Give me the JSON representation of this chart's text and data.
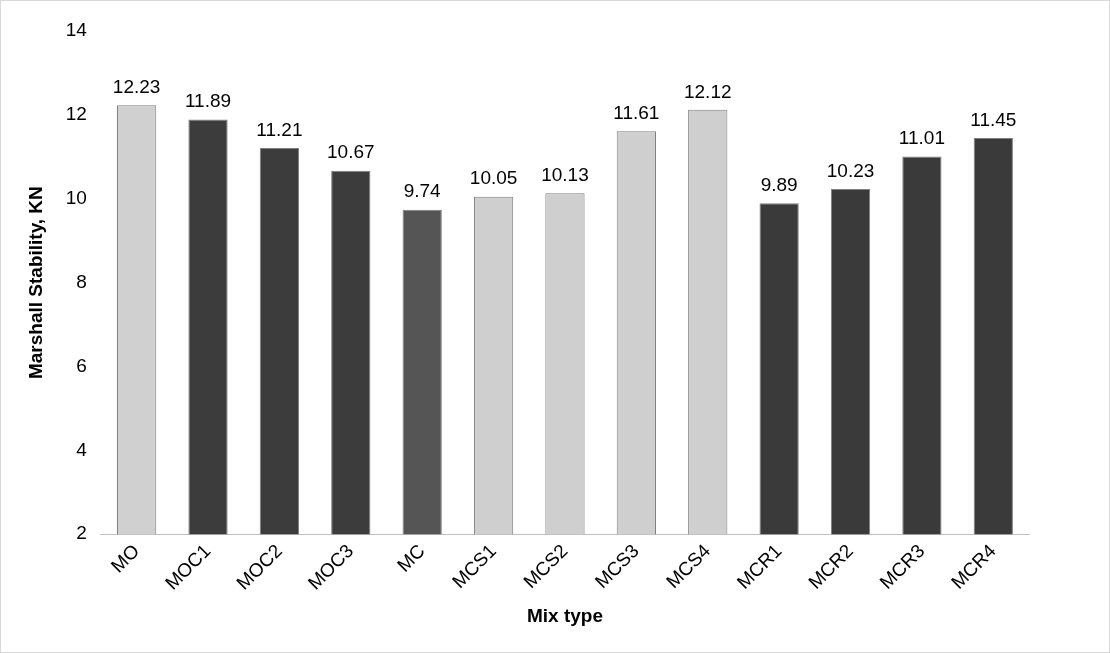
{
  "chart_data": {
    "type": "bar",
    "xlabel": "Mix type",
    "ylabel": "Marshall Stability, KN",
    "categories": [
      "MO",
      "MOC1",
      "MOC2",
      "MOC3",
      "MC",
      "MCS1",
      "MCS2",
      "MCS3",
      "MCS4",
      "MCR1",
      "MCR2",
      "MCR3",
      "MCR4"
    ],
    "values": [
      12.23,
      11.89,
      11.21,
      10.67,
      9.74,
      10.05,
      10.13,
      11.61,
      12.12,
      9.89,
      10.23,
      11.01,
      11.45
    ],
    "colors": [
      "#d0d0d0",
      "#3c3c3c",
      "#3c3c3c",
      "#3c3c3c",
      "#555555",
      "#cfcfcf",
      "#cfcfcf",
      "#cfcfcf",
      "#cfcfcf",
      "#3a3a3a",
      "#3a3a3a",
      "#3a3a3a",
      "#3a3a3a"
    ],
    "ylim": [
      2,
      14
    ],
    "yticks": [
      2,
      4,
      6,
      8,
      10,
      12,
      14
    ],
    "grid": false,
    "legend": false,
    "data_labels": true
  }
}
